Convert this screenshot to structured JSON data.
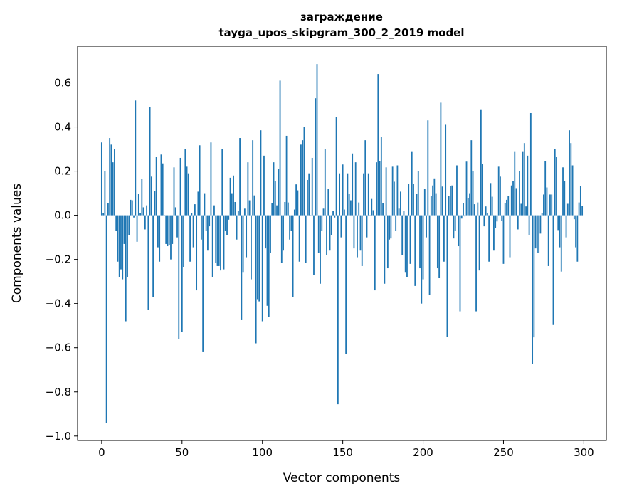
{
  "chart_data": {
    "type": "bar",
    "title": "заграждение",
    "subtitle": "tayga_upos_skipgram_300_2_2019 model",
    "xlabel": "Vector components",
    "ylabel": "Components values",
    "xlim": [
      -15,
      314
    ],
    "ylim": [
      -1.02,
      0.766
    ],
    "xticks": [
      0,
      50,
      100,
      150,
      200,
      250,
      300
    ],
    "xtick_labels": [
      "0",
      "50",
      "100",
      "150",
      "200",
      "250",
      "300"
    ],
    "yticks": [
      0.6,
      0.4,
      0.2,
      0.0,
      -0.2,
      -0.4,
      -0.6,
      -0.8,
      -1.0
    ],
    "ytick_labels": [
      "0.6",
      "0.4",
      "0.2",
      "0.0",
      "−0.2",
      "−0.4",
      "−0.6",
      "−0.8",
      "−1.0"
    ],
    "grid": false,
    "color": "#1f77b4",
    "values": [
      0.33,
      0.01,
      0.2,
      -0.94,
      0.055,
      0.35,
      0.32,
      0.24,
      0.3,
      -0.07,
      -0.21,
      -0.28,
      -0.245,
      -0.29,
      -0.13,
      -0.48,
      -0.28,
      -0.09,
      0.07,
      0.068,
      -0.01,
      0.52,
      -0.12,
      0.097,
      0.01,
      0.165,
      0.036,
      -0.064,
      0.045,
      -0.43,
      0.49,
      0.175,
      -0.37,
      0.11,
      0.265,
      -0.145,
      -0.21,
      0.275,
      0.235,
      0.0,
      -0.13,
      -0.14,
      -0.135,
      -0.2,
      -0.13,
      0.217,
      0.036,
      -0.1,
      -0.56,
      0.26,
      -0.53,
      -0.235,
      0.3,
      0.22,
      0.19,
      -0.21,
      0.01,
      -0.145,
      0.05,
      -0.34,
      0.107,
      0.317,
      -0.11,
      -0.62,
      0.1,
      -0.07,
      -0.16,
      -0.05,
      0.33,
      -0.28,
      0.045,
      -0.215,
      -0.23,
      -0.23,
      -0.25,
      0.3,
      -0.245,
      -0.07,
      -0.09,
      -0.02,
      0.17,
      0.1,
      0.18,
      0.06,
      -0.11,
      0.02,
      0.35,
      -0.475,
      -0.26,
      0.03,
      -0.19,
      0.24,
      0.068,
      -0.29,
      0.34,
      0.09,
      -0.58,
      -0.38,
      -0.39,
      0.385,
      -0.48,
      0.27,
      -0.15,
      -0.41,
      -0.46,
      -0.17,
      0.055,
      0.24,
      0.155,
      0.045,
      0.21,
      0.61,
      -0.215,
      -0.16,
      0.06,
      0.36,
      0.058,
      -0.11,
      -0.07,
      -0.37,
      0.026,
      0.14,
      0.113,
      -0.21,
      0.32,
      0.34,
      0.4,
      -0.215,
      0.16,
      0.19,
      0.0,
      0.26,
      -0.27,
      0.53,
      0.685,
      -0.17,
      -0.31,
      -0.07,
      0.03,
      0.3,
      -0.18,
      0.12,
      -0.16,
      -0.09,
      0.02,
      -0.01,
      0.445,
      -0.856,
      0.19,
      -0.1,
      0.23,
      0.026,
      -0.627,
      0.19,
      0.097,
      0.068,
      0.28,
      -0.15,
      0.24,
      -0.19,
      0.058,
      -0.16,
      -0.23,
      0.19,
      0.34,
      -0.1,
      0.19,
      0.0,
      0.074,
      0.023,
      -0.34,
      0.24,
      0.64,
      0.246,
      0.356,
      0.055,
      -0.31,
      0.217,
      -0.24,
      -0.11,
      -0.105,
      0.22,
      0.152,
      -0.07,
      0.226,
      0.03,
      0.107,
      -0.18,
      0.02,
      -0.26,
      -0.28,
      0.142,
      -0.22,
      0.29,
      0.142,
      -0.32,
      0.097,
      0.2,
      -0.24,
      -0.4,
      -0.29,
      0.12,
      -0.1,
      0.43,
      -0.36,
      0.087,
      0.135,
      0.167,
      0.1,
      -0.24,
      -0.285,
      0.51,
      0.13,
      -0.21,
      0.41,
      -0.55,
      0.087,
      0.133,
      0.135,
      -0.105,
      -0.07,
      0.226,
      -0.14,
      -0.435,
      -0.015,
      0.055,
      -0.005,
      0.243,
      0.078,
      0.1,
      0.34,
      0.2,
      0.05,
      -0.435,
      0.058,
      -0.25,
      0.48,
      0.233,
      -0.05,
      0.04,
      0.01,
      -0.21,
      0.146,
      0.084,
      -0.16,
      -0.057,
      -0.028,
      0.22,
      0.175,
      -0.025,
      -0.22,
      0.055,
      0.07,
      0.087,
      -0.19,
      0.135,
      0.155,
      0.29,
      0.123,
      -0.064,
      0.2,
      0.052,
      0.29,
      0.327,
      0.04,
      0.27,
      -0.09,
      0.463,
      -0.673,
      -0.553,
      -0.15,
      -0.17,
      -0.17,
      -0.083,
      0.01,
      0.094,
      0.246,
      0.126,
      -0.23,
      0.094,
      0.094,
      -0.497,
      0.3,
      0.265,
      -0.067,
      -0.145,
      -0.255,
      0.217,
      0.155,
      -0.1,
      0.052,
      0.385,
      0.327,
      0.226,
      -0.018,
      -0.145,
      -0.21,
      0.058,
      0.133,
      0.042
    ]
  }
}
